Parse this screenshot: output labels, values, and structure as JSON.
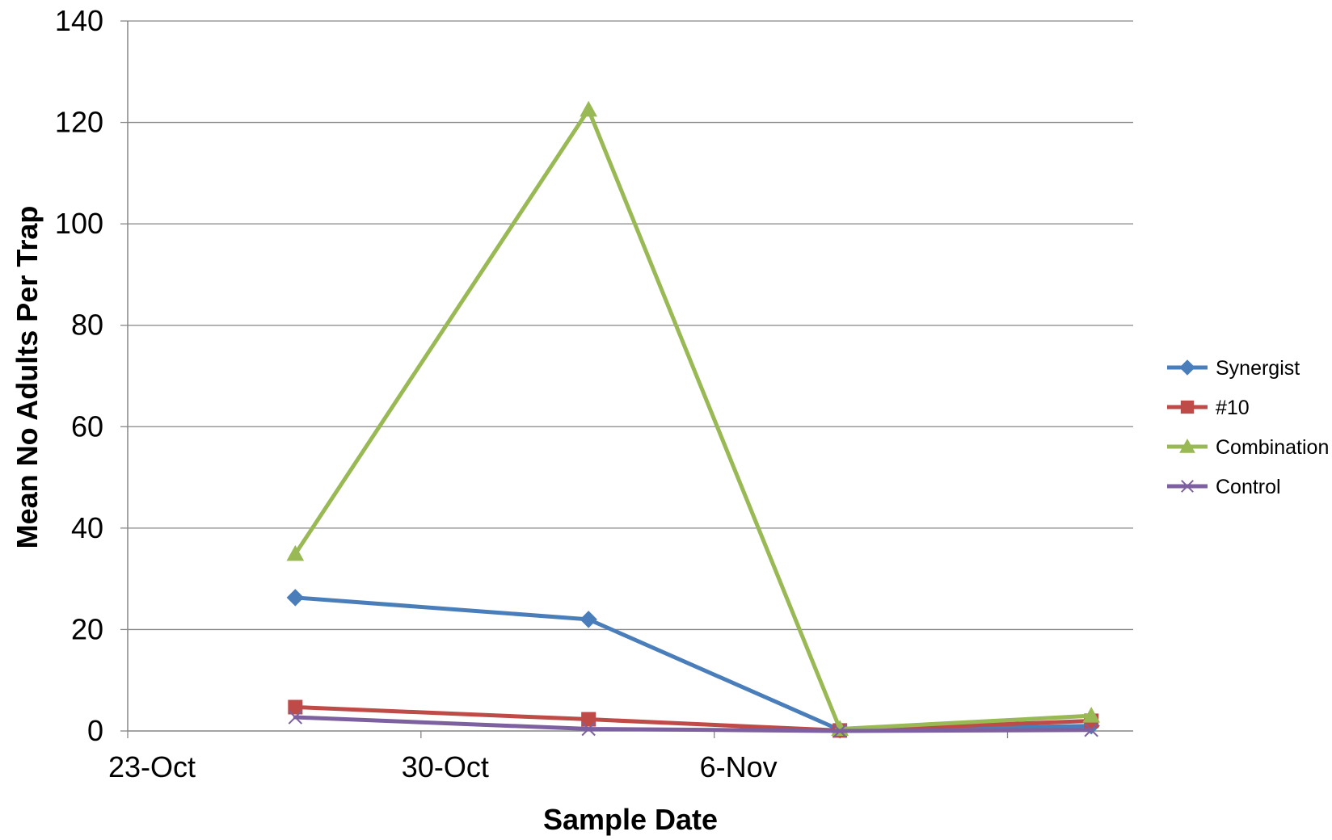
{
  "chart_data": {
    "type": "line",
    "title": "",
    "xlabel": "Sample Date",
    "ylabel": "Mean No Adults Per Trap",
    "ylim": [
      0,
      140
    ],
    "y_ticks": [
      "0",
      "20",
      "40",
      "60",
      "80",
      "100",
      "120",
      "140"
    ],
    "x_tick_labels": [
      "23-Oct",
      "30-Oct",
      "6-Nov"
    ],
    "grid": "horizontal",
    "legend_position": "right",
    "series": [
      {
        "name": "Synergist",
        "color": "#4a7ebb",
        "marker": "diamond",
        "points": [
          {
            "x": "2012-10-24",
            "y": 26.3
          },
          {
            "x": "2012-10-31",
            "y": 22.0
          },
          {
            "x": "2012-11-06",
            "y": 0.2
          },
          {
            "x": "2012-11-12",
            "y": 1.0
          }
        ]
      },
      {
        "name": "#10",
        "color": "#be4b48",
        "marker": "square",
        "points": [
          {
            "x": "2012-10-24",
            "y": 4.7
          },
          {
            "x": "2012-10-31",
            "y": 2.3
          },
          {
            "x": "2012-11-06",
            "y": 0.1
          },
          {
            "x": "2012-11-12",
            "y": 2.0
          }
        ]
      },
      {
        "name": "Combination",
        "color": "#98b954",
        "marker": "triangle",
        "points": [
          {
            "x": "2012-10-24",
            "y": 34.9
          },
          {
            "x": "2012-10-31",
            "y": 122.5
          },
          {
            "x": "2012-11-06",
            "y": 0.4
          },
          {
            "x": "2012-11-12",
            "y": 3.0
          }
        ]
      },
      {
        "name": "Control",
        "color": "#7d60a0",
        "marker": "x",
        "points": [
          {
            "x": "2012-10-24",
            "y": 2.7
          },
          {
            "x": "2012-10-31",
            "y": 0.4
          },
          {
            "x": "2012-11-06",
            "y": 0.0
          },
          {
            "x": "2012-11-12",
            "y": 0.2
          }
        ]
      }
    ]
  }
}
